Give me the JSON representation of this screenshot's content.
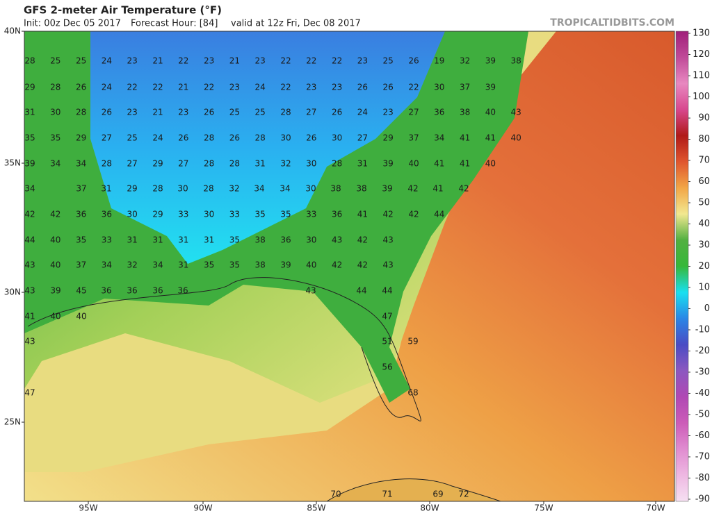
{
  "header": {
    "title": "GFS 2-meter Air Temperature (°F)",
    "init": "Init: 00z Dec 05 2017",
    "forecast_hour": "Forecast Hour: [84]",
    "valid": "valid at 12z Fri, Dec 08 2017",
    "credit": "TROPICALTIDBITS.COM"
  },
  "map": {
    "lat_labels": [
      "40N",
      "35N",
      "30N",
      "25N"
    ],
    "lon_labels": [
      "95W",
      "90W",
      "85W",
      "80W",
      "75W",
      "70W"
    ],
    "station_values": [
      [
        28,
        25,
        25,
        24,
        23,
        21,
        22,
        23,
        21,
        23,
        22,
        22,
        22,
        23,
        25,
        26,
        19,
        32,
        39,
        38
      ],
      [
        29,
        28,
        26,
        24,
        22,
        22,
        21,
        22,
        23,
        24,
        22,
        23,
        23,
        26,
        26,
        22,
        30,
        37,
        39
      ],
      [
        31,
        30,
        28,
        26,
        23,
        21,
        23,
        26,
        25,
        25,
        28,
        27,
        26,
        24,
        23,
        27,
        36,
        38,
        40,
        43
      ],
      [
        35,
        35,
        29,
        27,
        25,
        24,
        26,
        28,
        26,
        28,
        30,
        26,
        30,
        27,
        29,
        37,
        34,
        41,
        41,
        40
      ],
      [
        39,
        34,
        34,
        28,
        27,
        29,
        27,
        28,
        28,
        31,
        32,
        30,
        28,
        31,
        39,
        40,
        41,
        41,
        40
      ],
      [
        34,
        37,
        31,
        29,
        28,
        30,
        28,
        32,
        34,
        34,
        30,
        38,
        38,
        39,
        42,
        41,
        42
      ],
      [
        42,
        42,
        36,
        36,
        30,
        29,
        33,
        30,
        33,
        35,
        35,
        33,
        36,
        41,
        42,
        42,
        44
      ],
      [
        44,
        40,
        35,
        33,
        31,
        31,
        31,
        31,
        35,
        38,
        36,
        30,
        43,
        42,
        43
      ],
      [
        43,
        40,
        37,
        34,
        32,
        34,
        31,
        35,
        35,
        38,
        39,
        40,
        42,
        42,
        43
      ],
      [
        43,
        39,
        45,
        36,
        36,
        36,
        36,
        43,
        44,
        44
      ],
      [
        41,
        40,
        40,
        47
      ],
      [
        43,
        51,
        59
      ],
      [
        56
      ],
      [
        47,
        68
      ],
      [
        70,
        71,
        69,
        72
      ]
    ]
  },
  "colorbar": {
    "lim": [
      -91,
      131
    ],
    "ticks": [
      130,
      120,
      110,
      100,
      90,
      80,
      70,
      60,
      50,
      40,
      30,
      20,
      10,
      0,
      -10,
      -20,
      -30,
      -40,
      -50,
      -60,
      -70,
      -80,
      -90
    ],
    "colors": [
      "#f6e0f2",
      "#eeb8e2",
      "#e08cd0",
      "#cc5cb8",
      "#b048b4",
      "#8c58c0",
      "#4a4cc4",
      "#2a86e6",
      "#18e0f0",
      "#36b83a",
      "#52b040",
      "#f2e890",
      "#f2a646",
      "#e0562e",
      "#b01a18",
      "#d8488e",
      "#e888c0",
      "#c04a98",
      "#a0207a"
    ]
  }
}
